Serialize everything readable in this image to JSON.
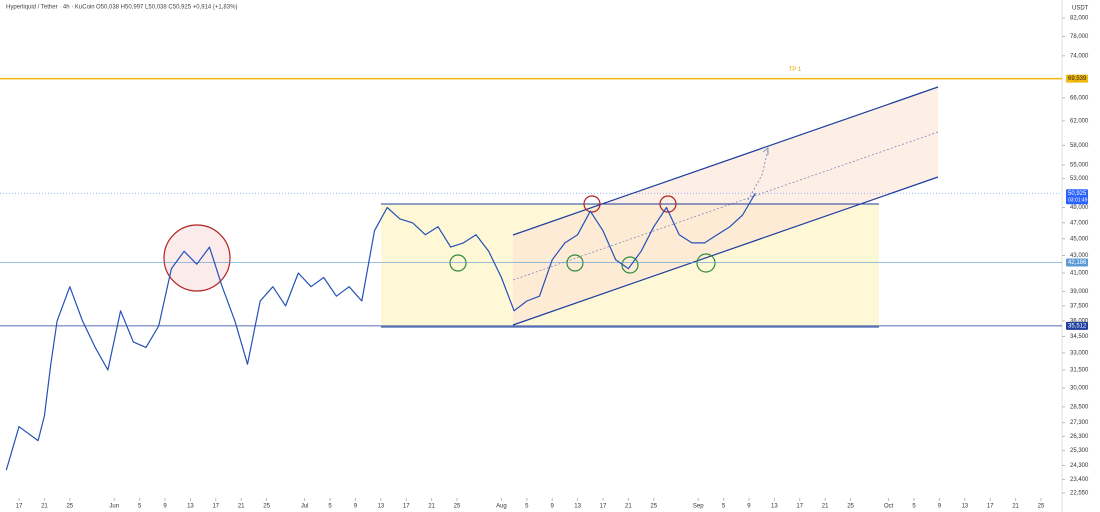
{
  "chart_data": {
    "type": "line",
    "log_scale": true,
    "title": "Hyperliquid / Tether · 4h · KuCoin",
    "subtitle": "O50,038 H50,997 L50,038 C50,925 +0,914 (+1,83%)",
    "unit_label": "USDT",
    "annotation": "TP 1",
    "countdown": "03:01:49",
    "xlim": [
      -3,
      164
    ],
    "ylim": [
      22550,
      82000
    ],
    "xticks": [
      {
        "value": 0,
        "label": "17"
      },
      {
        "value": 4,
        "label": "21"
      },
      {
        "value": 8,
        "label": "25"
      },
      {
        "value": 15,
        "label": "Jun"
      },
      {
        "value": 19,
        "label": "5"
      },
      {
        "value": 23,
        "label": "9"
      },
      {
        "value": 27,
        "label": "13"
      },
      {
        "value": 31,
        "label": "17"
      },
      {
        "value": 35,
        "label": "21"
      },
      {
        "value": 39,
        "label": "25"
      },
      {
        "value": 45,
        "label": "Jul"
      },
      {
        "value": 49,
        "label": "5"
      },
      {
        "value": 53,
        "label": "9"
      },
      {
        "value": 57,
        "label": "13"
      },
      {
        "value": 61,
        "label": "17"
      },
      {
        "value": 65,
        "label": "21"
      },
      {
        "value": 69,
        "label": "25"
      },
      {
        "value": 76,
        "label": "Aug"
      },
      {
        "value": 80,
        "label": "5"
      },
      {
        "value": 84,
        "label": "9"
      },
      {
        "value": 88,
        "label": "13"
      },
      {
        "value": 92,
        "label": "17"
      },
      {
        "value": 96,
        "label": "21"
      },
      {
        "value": 100,
        "label": "25"
      },
      {
        "value": 107,
        "label": "Sep"
      },
      {
        "value": 111,
        "label": "5"
      },
      {
        "value": 115,
        "label": "9"
      },
      {
        "value": 119,
        "label": "13"
      },
      {
        "value": 123,
        "label": "17"
      },
      {
        "value": 127,
        "label": "21"
      },
      {
        "value": 131,
        "label": "25"
      },
      {
        "value": 137,
        "label": "Oct"
      },
      {
        "value": 141,
        "label": "5"
      },
      {
        "value": 145,
        "label": "9"
      },
      {
        "value": 149,
        "label": "13"
      },
      {
        "value": 153,
        "label": "17"
      },
      {
        "value": 157,
        "label": "21"
      },
      {
        "value": 161,
        "label": "25"
      }
    ],
    "yticks": [
      {
        "value": 82000,
        "label": "82,000"
      },
      {
        "value": 78000,
        "label": "78,000"
      },
      {
        "value": 74000,
        "label": "74,000"
      },
      {
        "value": 66000,
        "label": "66,000"
      },
      {
        "value": 62000,
        "label": "62,000"
      },
      {
        "value": 58000,
        "label": "58,000"
      },
      {
        "value": 55000,
        "label": "55,000"
      },
      {
        "value": 53000,
        "label": "53,000"
      },
      {
        "value": 49000,
        "label": "49,000"
      },
      {
        "value": 47000,
        "label": "47,000"
      },
      {
        "value": 45000,
        "label": "45,000"
      },
      {
        "value": 43000,
        "label": "43,000"
      },
      {
        "value": 41000,
        "label": "41,000"
      },
      {
        "value": 39000,
        "label": "39,000"
      },
      {
        "value": 37500,
        "label": "37,500"
      },
      {
        "value": 36000,
        "label": "36,000"
      },
      {
        "value": 34500,
        "label": "34,500"
      },
      {
        "value": 33000,
        "label": "33,000"
      },
      {
        "value": 31500,
        "label": "31,500"
      },
      {
        "value": 30000,
        "label": "30,000"
      },
      {
        "value": 28500,
        "label": "28,500"
      },
      {
        "value": 27300,
        "label": "27,300"
      },
      {
        "value": 26300,
        "label": "26,300"
      },
      {
        "value": 25300,
        "label": "25,300"
      },
      {
        "value": 24300,
        "label": "24,300"
      },
      {
        "value": 23400,
        "label": "23,400"
      },
      {
        "value": 22550,
        "label": "22,550"
      }
    ],
    "price_tags": [
      {
        "value": 69539,
        "label": "69,539",
        "color": "#f0b90b"
      },
      {
        "value": 50925,
        "label": "50,925",
        "color": "#2962ff"
      },
      {
        "value": 42186,
        "label": "42,186",
        "color": "#5b9bd5"
      },
      {
        "value": 35512,
        "label": "35,512",
        "color": "#1e3f9e"
      }
    ],
    "series": [
      {
        "color": "#2451b7",
        "x": [
          -2,
          0,
          3,
          4,
          5,
          6,
          8,
          10,
          12,
          14,
          16,
          18,
          20,
          22,
          24,
          26,
          28,
          30,
          32,
          34,
          36,
          38,
          40,
          42,
          44,
          46,
          48,
          50,
          52,
          54,
          56,
          58,
          60,
          62,
          64,
          66,
          68,
          70,
          72,
          74,
          76,
          78,
          80,
          82,
          84,
          86,
          88,
          90,
          92,
          94,
          96,
          98,
          100,
          102,
          104,
          106,
          108,
          110,
          112,
          114,
          116
        ],
        "values": [
          24000,
          27000,
          26000,
          27800,
          32000,
          36000,
          39500,
          36000,
          33500,
          31500,
          37000,
          34000,
          33500,
          35500,
          41500,
          43500,
          42000,
          44000,
          39500,
          36000,
          32000,
          38000,
          39500,
          37500,
          41000,
          39500,
          40500,
          38500,
          39500,
          38000,
          46000,
          49000,
          47500,
          47000,
          45500,
          46500,
          44000,
          44500,
          45500,
          43500,
          40500,
          37000,
          38000,
          38500,
          42500,
          44500,
          45500,
          48500,
          46000,
          42500,
          41500,
          43500,
          46500,
          49000,
          45500,
          44500,
          44500,
          45500,
          46500,
          48000,
          50925
        ]
      }
    ]
  }
}
